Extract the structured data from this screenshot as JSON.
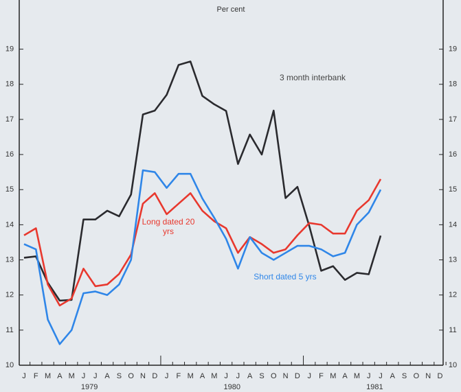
{
  "chart_data": {
    "type": "line",
    "title": "Per cent",
    "categories": [
      "J",
      "F",
      "M",
      "A",
      "M",
      "J",
      "J",
      "A",
      "S",
      "O",
      "N",
      "D",
      "J",
      "F",
      "M",
      "A",
      "M",
      "J",
      "J",
      "A",
      "S",
      "O",
      "N",
      "D",
      "J",
      "F",
      "M",
      "A",
      "M",
      "J",
      "J",
      "A",
      "S",
      "O",
      "N",
      "D"
    ],
    "year_labels": [
      "1979",
      "1980",
      "1981"
    ],
    "ylim": [
      10,
      20.4
    ],
    "yticks": [
      10,
      11,
      12,
      13,
      14,
      15,
      16,
      17,
      18,
      19
    ],
    "y2lim": [
      10,
      20.4
    ],
    "y2ticks": [
      10,
      11,
      12,
      13,
      14,
      15,
      16,
      17,
      18,
      19
    ],
    "series": [
      {
        "name": "3 month interbank",
        "color": "#2a2a2e",
        "values": [
          13.06,
          13.1,
          12.35,
          11.84,
          11.86,
          14.15,
          14.15,
          14.4,
          14.24,
          14.86,
          17.14,
          17.25,
          17.7,
          18.55,
          18.65,
          17.67,
          17.43,
          17.24,
          15.73,
          16.57,
          16.0,
          17.25,
          14.76,
          15.08,
          13.96,
          12.69,
          12.82,
          12.43,
          12.63,
          12.59,
          13.69,
          null,
          null,
          null,
          null,
          null
        ]
      },
      {
        "name": "Long dated 20 yrs",
        "color": "#e8382e",
        "values": [
          13.7,
          13.9,
          12.3,
          11.7,
          11.9,
          12.75,
          12.25,
          12.3,
          12.6,
          13.15,
          14.6,
          14.9,
          14.3,
          14.6,
          14.9,
          14.4,
          14.1,
          13.9,
          13.2,
          13.65,
          13.45,
          13.2,
          13.3,
          13.7,
          14.05,
          14.0,
          13.75,
          13.75,
          14.4,
          14.7,
          15.3,
          null,
          null,
          null,
          null,
          null
        ]
      },
      {
        "name": "Short dated 5 yrs",
        "color": "#2f86e8",
        "values": [
          13.45,
          13.3,
          11.3,
          10.6,
          11.0,
          12.05,
          12.1,
          12.0,
          12.3,
          13.0,
          15.55,
          15.5,
          15.05,
          15.45,
          15.45,
          14.75,
          14.2,
          13.6,
          12.75,
          13.65,
          13.2,
          13.0,
          13.2,
          13.4,
          13.4,
          13.3,
          13.1,
          13.2,
          14.0,
          14.35,
          15.0,
          null,
          null,
          null,
          null,
          null
        ]
      }
    ]
  }
}
